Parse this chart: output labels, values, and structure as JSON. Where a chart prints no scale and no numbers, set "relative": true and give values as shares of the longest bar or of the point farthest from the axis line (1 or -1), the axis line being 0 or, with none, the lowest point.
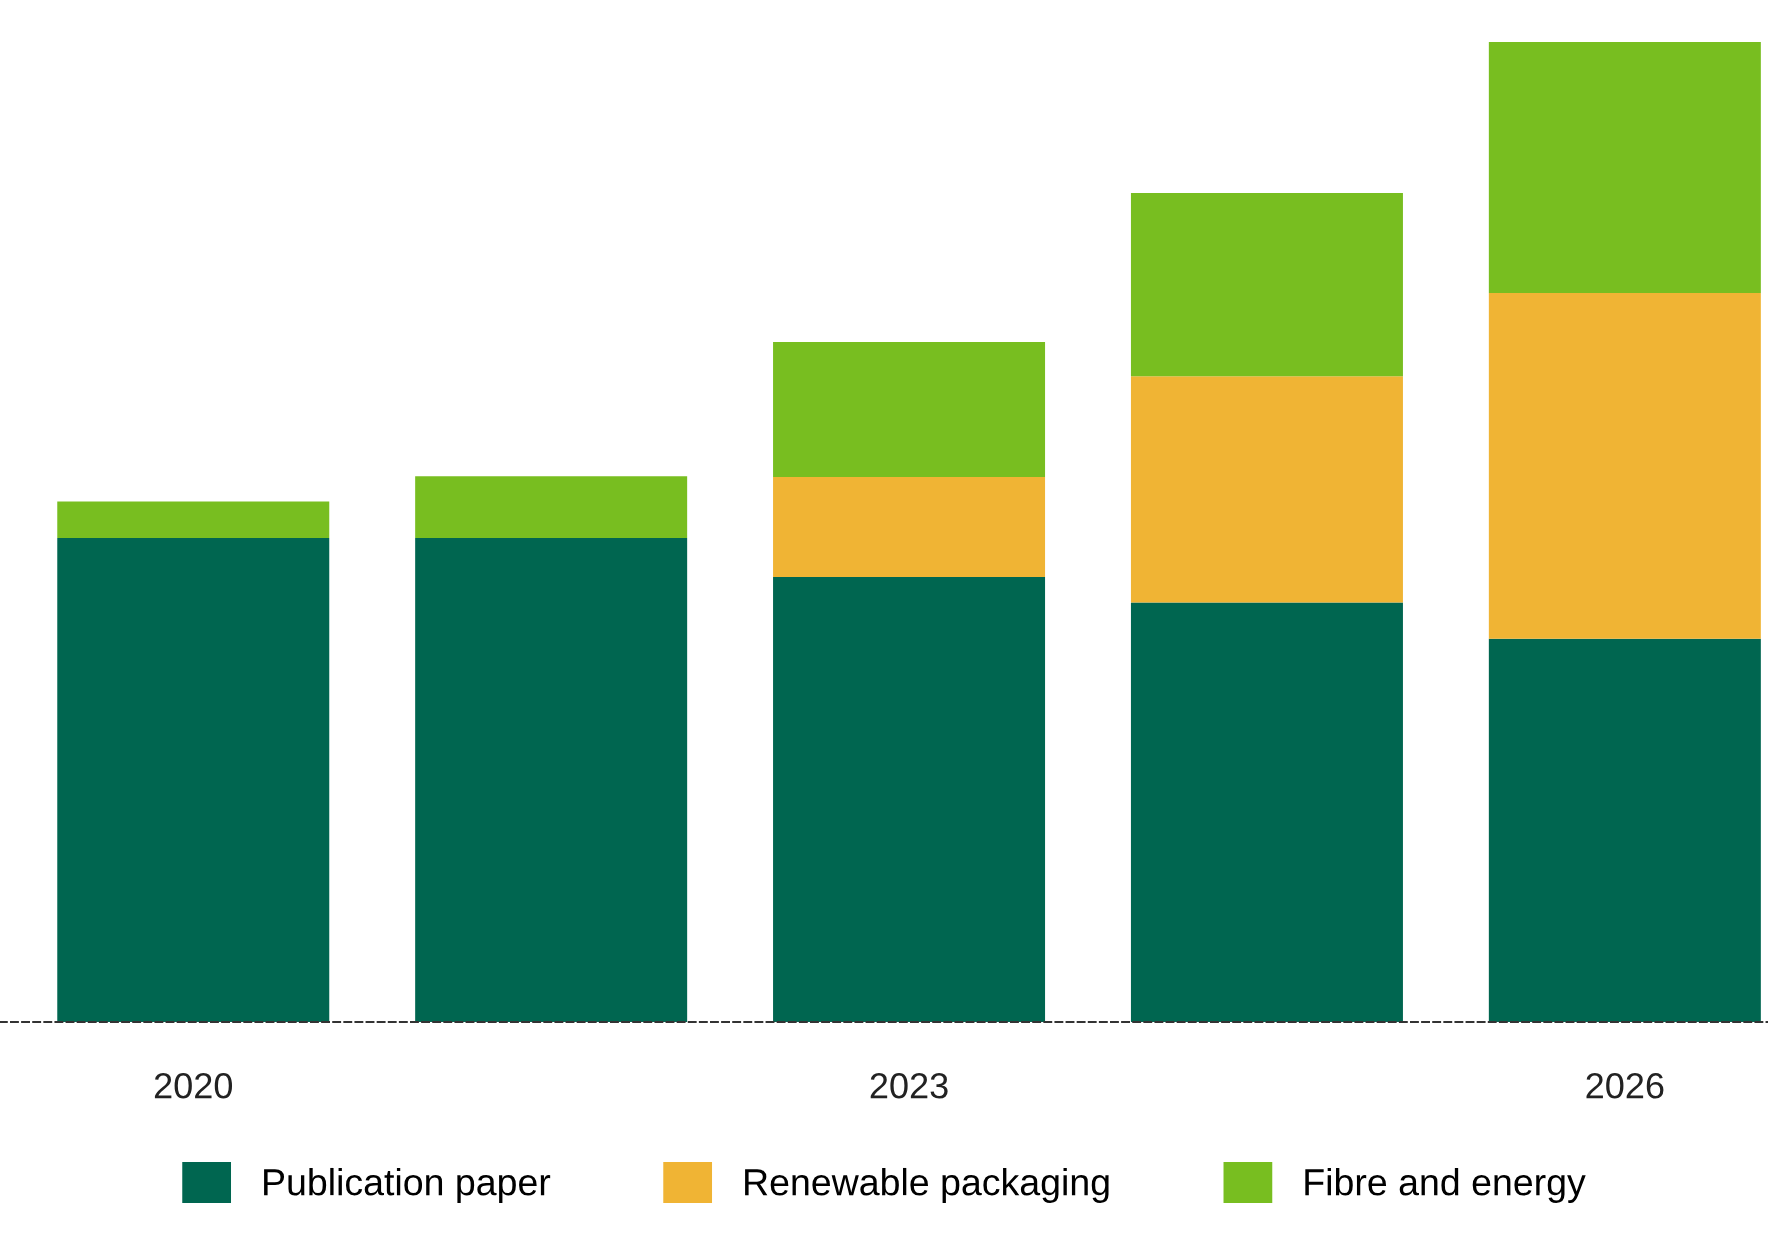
{
  "chart_data": {
    "type": "bar",
    "stacked": true,
    "relative": true,
    "categories": [
      "2020",
      null,
      "2023",
      null,
      "2026"
    ],
    "series": [
      {
        "name": "Publication paper",
        "color": "#006650",
        "values": [
          0.494,
          0.494,
          0.454,
          0.428,
          0.391
        ]
      },
      {
        "name": "Renewable packaging",
        "color": "#f0b434",
        "values": [
          0,
          0,
          0.102,
          0.231,
          0.353
        ]
      },
      {
        "name": "Fibre and energy",
        "color": "#78be20",
        "values": [
          0.037,
          0.063,
          0.138,
          0.187,
          0.256
        ]
      }
    ],
    "legend": "bottom",
    "grid": false
  }
}
